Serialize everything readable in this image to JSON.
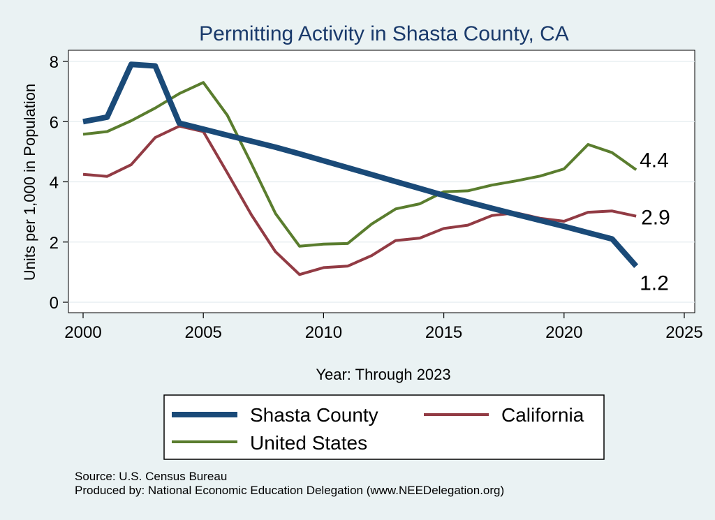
{
  "chart_data": {
    "type": "line",
    "title": "Permitting Activity in Shasta County, CA",
    "xlabel": "Year: Through 2023",
    "ylabel": "Units per 1,000 in Population",
    "xlim": [
      2000,
      2025
    ],
    "ylim": [
      0,
      8
    ],
    "x_ticks": [
      2000,
      2005,
      2010,
      2015,
      2020,
      2025
    ],
    "y_ticks": [
      0,
      2,
      4,
      6,
      8
    ],
    "grid": true,
    "legend_placement": "bottom",
    "x": [
      2000,
      2001,
      2002,
      2003,
      2004,
      2005,
      2006,
      2007,
      2008,
      2009,
      2010,
      2011,
      2012,
      2013,
      2014,
      2015,
      2016,
      2017,
      2018,
      2019,
      2020,
      2021,
      2022,
      2023
    ],
    "series": [
      {
        "name": "Shasta County",
        "color": "#1a4a78",
        "values": [
          6.0,
          6.15,
          7.9,
          7.85,
          5.95,
          5.75,
          5.55,
          5.35,
          5.15,
          4.93,
          4.7,
          4.47,
          4.24,
          4.01,
          3.78,
          3.55,
          3.33,
          3.12,
          2.92,
          2.72,
          2.52,
          2.31,
          2.1,
          1.2
        ],
        "end_label": "1.2"
      },
      {
        "name": "California",
        "color": "#923b44",
        "values": [
          4.25,
          4.18,
          4.57,
          5.47,
          5.85,
          5.67,
          4.3,
          2.9,
          1.68,
          0.92,
          1.15,
          1.2,
          1.55,
          2.05,
          2.13,
          2.45,
          2.56,
          2.88,
          2.97,
          2.79,
          2.69,
          2.99,
          3.03,
          2.86
        ],
        "end_label": "2.9"
      },
      {
        "name": "United States",
        "color": "#5a7d2e",
        "values": [
          5.58,
          5.67,
          6.03,
          6.45,
          6.93,
          7.3,
          6.21,
          4.6,
          2.95,
          1.86,
          1.93,
          1.95,
          2.6,
          3.1,
          3.27,
          3.67,
          3.7,
          3.89,
          4.03,
          4.19,
          4.43,
          5.24,
          4.97,
          4.4
        ],
        "end_label": "4.4"
      }
    ]
  },
  "footer": {
    "source": "Source: U.S. Census Bureau",
    "producer": "Produced by: National Economic Education Delegation (www.NEEDelegation.org)"
  }
}
